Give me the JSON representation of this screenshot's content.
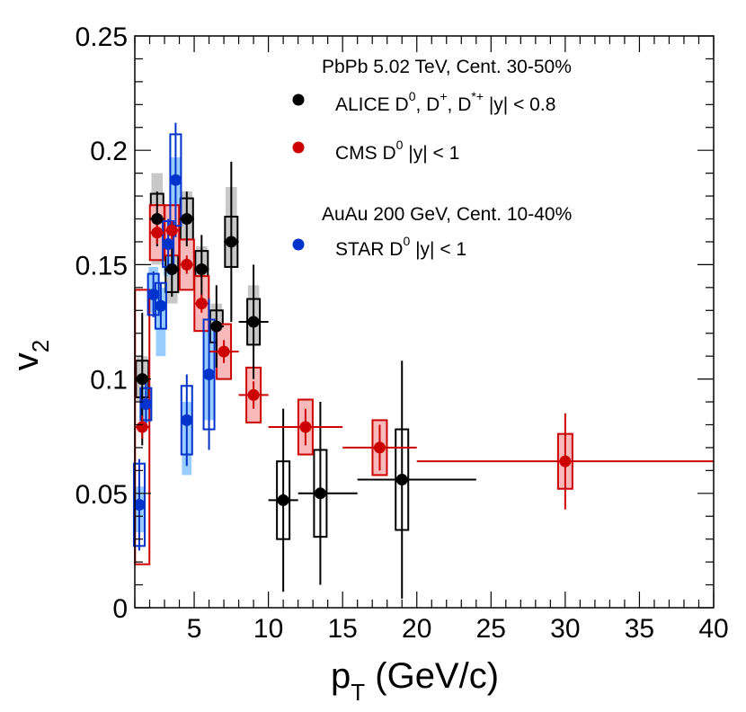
{
  "chart_data": {
    "type": "scatter",
    "x_axis": {
      "title_main": "p",
      "title_sub": "T",
      "title_unit": " (GeV/c)",
      "range": [
        1,
        40
      ],
      "major_ticks": [
        5,
        10,
        15,
        20,
        25,
        30,
        35,
        40
      ],
      "tick_labels": [
        "5",
        "10",
        "15",
        "20",
        "25",
        "30",
        "35",
        "40"
      ]
    },
    "y_axis": {
      "title_main": "v",
      "title_sub": "2",
      "range": [
        0,
        0.25
      ],
      "major_ticks": [
        0,
        0.05,
        0.1,
        0.15,
        0.2,
        0.25
      ],
      "tick_labels": [
        "0",
        "0.05",
        "0.1",
        "0.15",
        "0.2",
        "0.25"
      ]
    },
    "legend": {
      "header1": "PbPb 5.02 TeV, Cent. 30-50%",
      "header2": "AuAu 200 GeV, Cent. 10-40%",
      "placement": "top-right",
      "entries": [
        {
          "series": "alice",
          "label_base": "ALICE D",
          "sup1": "0",
          "mid1": ", D",
          "sup2": "+",
          "mid2": ", D",
          "sup3": "*+",
          "tail": " |y| < 0.8"
        },
        {
          "series": "cms",
          "label_base": "CMS D",
          "sup1": "0",
          "tail": " |y| < 1"
        },
        {
          "series": "star",
          "label_base": "STAR D",
          "sup1": "0",
          "tail": " |y| < 1"
        }
      ]
    },
    "series": [
      {
        "name": "ALICE",
        "key": "alice",
        "color": "#000000",
        "syst_fill": "#c8c8c8",
        "box_fill": "none",
        "box_stroke": "#000000",
        "points": [
          {
            "x": 1.5,
            "y": 0.1,
            "xlo": 1,
            "xhi": 2,
            "stat": 0.029,
            "syst_lo": 0.008,
            "syst_hi": 0.008,
            "band_lo": 0.01,
            "band_hi": 0.01
          },
          {
            "x": 2.5,
            "y": 0.17,
            "xlo": 2,
            "xhi": 3,
            "stat": 0.012,
            "syst_lo": 0.011,
            "syst_hi": 0.011,
            "band_lo": 0.02,
            "band_hi": 0.02
          },
          {
            "x": 3.5,
            "y": 0.148,
            "xlo": 3,
            "xhi": 4,
            "stat": 0.012,
            "syst_lo": 0.01,
            "syst_hi": 0.01,
            "band_lo": 0.015,
            "band_hi": 0.015
          },
          {
            "x": 4.5,
            "y": 0.17,
            "xlo": 4,
            "xhi": 5,
            "stat": 0.012,
            "syst_lo": 0.009,
            "syst_hi": 0.009,
            "band_lo": 0.012,
            "band_hi": 0.012
          },
          {
            "x": 5.5,
            "y": 0.148,
            "xlo": 5,
            "xhi": 6,
            "stat": 0.015,
            "syst_lo": 0.008,
            "syst_hi": 0.008,
            "band_lo": 0.01,
            "band_hi": 0.01
          },
          {
            "x": 6.5,
            "y": 0.123,
            "xlo": 6,
            "xhi": 7,
            "stat": 0.018,
            "syst_lo": 0.007,
            "syst_hi": 0.007,
            "band_lo": 0.01,
            "band_hi": 0.01
          },
          {
            "x": 7.5,
            "y": 0.16,
            "xlo": 7,
            "xhi": 8,
            "stat": 0.035,
            "syst_lo": 0.011,
            "syst_hi": 0.011,
            "band_lo": 0.011,
            "band_hi": 0.024
          },
          {
            "x": 9.0,
            "y": 0.125,
            "xlo": 8,
            "xhi": 10,
            "stat": 0.025,
            "syst_lo": 0.01,
            "syst_hi": 0.01,
            "band_lo": 0.01,
            "band_hi": 0.016
          },
          {
            "x": 11.0,
            "y": 0.047,
            "xlo": 10,
            "xhi": 12,
            "stat": 0.04,
            "syst_lo": 0.017,
            "syst_hi": 0.017,
            "band_lo": 0.0,
            "band_hi": 0.0
          },
          {
            "x": 13.5,
            "y": 0.05,
            "xlo": 12,
            "xhi": 16,
            "stat": 0.04,
            "syst_lo": 0.019,
            "syst_hi": 0.019,
            "band_lo": 0.0,
            "band_hi": 0.0
          },
          {
            "x": 19.0,
            "y": 0.056,
            "xlo": 16,
            "xhi": 24,
            "stat": 0.052,
            "syst_lo": 0.022,
            "syst_hi": 0.022,
            "band_lo": 0.0,
            "band_hi": 0.0
          }
        ]
      },
      {
        "name": "CMS",
        "key": "cms",
        "color": "#cc0000",
        "syst_fill": "#f4aaaa",
        "box_fill": "#f7b9b9",
        "box_stroke": "#cc0000",
        "points": [
          {
            "x": 1.5,
            "y": 0.079,
            "xlo": 1,
            "xhi": 2,
            "stat": 0.005,
            "syst_lo": 0.06,
            "syst_hi": 0.06,
            "box_fill": "none"
          },
          {
            "x": 2.5,
            "y": 0.164,
            "xlo": 2,
            "xhi": 3,
            "stat": 0.005,
            "syst_lo": 0.012,
            "syst_hi": 0.012
          },
          {
            "x": 3.5,
            "y": 0.165,
            "xlo": 3,
            "xhi": 4,
            "stat": 0.004,
            "syst_lo": 0.011,
            "syst_hi": 0.011
          },
          {
            "x": 4.5,
            "y": 0.15,
            "xlo": 4,
            "xhi": 5,
            "stat": 0.004,
            "syst_lo": 0.011,
            "syst_hi": 0.011
          },
          {
            "x": 5.5,
            "y": 0.133,
            "xlo": 5,
            "xhi": 6,
            "stat": 0.004,
            "syst_lo": 0.012,
            "syst_hi": 0.012
          },
          {
            "x": 7.0,
            "y": 0.112,
            "xlo": 6,
            "xhi": 8,
            "stat": 0.005,
            "syst_lo": 0.012,
            "syst_hi": 0.012
          },
          {
            "x": 9.0,
            "y": 0.093,
            "xlo": 8,
            "xhi": 10,
            "stat": 0.006,
            "syst_lo": 0.012,
            "syst_hi": 0.012
          },
          {
            "x": 12.5,
            "y": 0.079,
            "xlo": 10,
            "xhi": 15,
            "stat": 0.008,
            "syst_lo": 0.012,
            "syst_hi": 0.012
          },
          {
            "x": 17.5,
            "y": 0.07,
            "xlo": 15,
            "xhi": 20,
            "stat": 0.01,
            "syst_lo": 0.012,
            "syst_hi": 0.012
          },
          {
            "x": 30.0,
            "y": 0.064,
            "xlo": 20,
            "xhi": 40,
            "stat": 0.021,
            "syst_lo": 0.012,
            "syst_hi": 0.012
          }
        ]
      },
      {
        "name": "STAR",
        "key": "star",
        "color": "#0033cc",
        "syst_fill": "#99ccff",
        "box_fill": "none",
        "box_stroke": "#0033cc",
        "points": [
          {
            "x": 1.3,
            "y": 0.045,
            "stat": 0.02,
            "syst_lo": 0.018,
            "syst_hi": 0.018,
            "band_lo": 0.012,
            "band_hi": 0.008
          },
          {
            "x": 1.75,
            "y": 0.089,
            "stat": 0.011,
            "syst_lo": 0.007,
            "syst_hi": 0.007,
            "band_lo": 0.008,
            "band_hi": 0.008
          },
          {
            "x": 2.25,
            "y": 0.137,
            "stat": 0.01,
            "syst_lo": 0.009,
            "syst_hi": 0.009,
            "band_lo": 0.008,
            "band_hi": 0.012
          },
          {
            "x": 2.75,
            "y": 0.132,
            "stat": 0.01,
            "syst_lo": 0.01,
            "syst_hi": 0.01,
            "band_lo": 0.022,
            "band_hi": 0.008
          },
          {
            "x": 3.25,
            "y": 0.159,
            "stat": 0.011,
            "syst_lo": 0.01,
            "syst_hi": 0.01,
            "band_lo": 0.014,
            "band_hi": 0.01
          },
          {
            "x": 3.75,
            "y": 0.187,
            "stat": 0.025,
            "syst_lo": 0.02,
            "syst_hi": 0.02,
            "band_lo": 0.028,
            "band_hi": 0.01
          },
          {
            "x": 4.5,
            "y": 0.082,
            "stat": 0.02,
            "syst_lo": 0.015,
            "syst_hi": 0.015,
            "band_lo": 0.024,
            "band_hi": 0.008
          },
          {
            "x": 6.0,
            "y": 0.102,
            "stat": 0.033,
            "syst_lo": 0.024,
            "syst_hi": 0.024,
            "band_lo": 0.02,
            "band_hi": 0.02
          }
        ]
      }
    ]
  }
}
